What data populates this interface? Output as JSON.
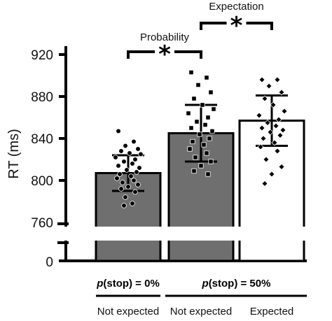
{
  "chart_data": {
    "type": "bar",
    "ylabel": "RT (ms)",
    "ylim": [
      760,
      920
    ],
    "y_break": true,
    "y_ticks": [
      {
        "value": 920,
        "label": "920"
      },
      {
        "value": 880,
        "label": "880"
      },
      {
        "value": 840,
        "label": "840"
      },
      {
        "value": 800,
        "label": "800"
      },
      {
        "value": 760,
        "label": "760"
      }
    ],
    "y_zero_label": "0",
    "categories": [
      "Not expected",
      "Not expected",
      "Expected"
    ],
    "bar_colors": [
      "#6f6f6f",
      "#6f6f6f",
      "#ffffff"
    ],
    "values": [
      807,
      845,
      857
    ],
    "error": [
      17,
      27,
      24
    ],
    "points": [
      [
        847,
        837,
        833,
        830,
        828,
        826,
        825,
        822,
        820,
        818,
        816,
        814,
        812,
        810,
        808,
        806,
        804,
        802,
        800,
        798,
        796,
        794,
        792,
        789,
        784,
        778,
        776
      ],
      [
        903,
        898,
        891,
        884,
        878,
        872,
        868,
        864,
        860,
        856,
        853,
        850,
        847,
        844,
        840,
        837,
        834,
        830,
        826,
        822,
        818,
        814,
        809,
        806
      ],
      [
        896,
        896,
        890,
        884,
        878,
        872,
        866,
        862,
        858,
        855,
        852,
        850,
        848,
        846,
        843,
        840,
        836,
        832,
        828,
        820,
        813,
        806,
        797
      ]
    ],
    "brackets": [
      {
        "label": "Probability",
        "marker": "*",
        "from": 0,
        "to": 1
      },
      {
        "label": "Expectation",
        "marker": "*",
        "from": 1,
        "to": 2
      }
    ],
    "groups": [
      {
        "prefix": "p",
        "text": "(stop) = 0%",
        "from": 0,
        "to": 0
      },
      {
        "prefix": "p",
        "text": "(stop) = 50%",
        "from": 1,
        "to": 2
      }
    ],
    "grid": false
  }
}
